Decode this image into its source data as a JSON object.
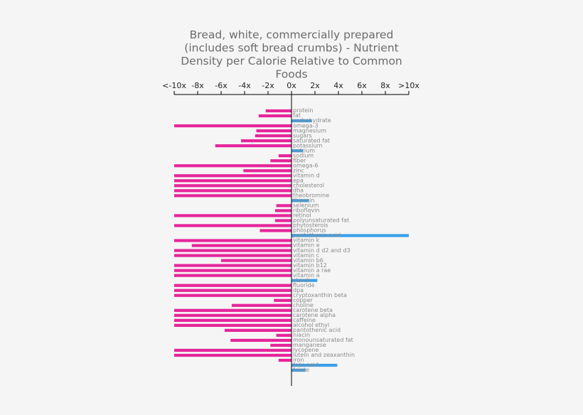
{
  "chart_data": {
    "type": "bar",
    "orientation": "horizontal",
    "title_lines": [
      "Bread, white, commercially prepared",
      "(includes soft bread crumbs) - Nutrient",
      "Density per Calorie Relative to Common",
      "Foods"
    ],
    "xlim": [
      -10,
      10
    ],
    "xticks": [
      {
        "value": -10,
        "label": "<-10x"
      },
      {
        "value": -8,
        "label": "-8x"
      },
      {
        "value": -6,
        "label": "-6x"
      },
      {
        "value": -4,
        "label": "-4x"
      },
      {
        "value": -2,
        "label": "-2x"
      },
      {
        "value": 0,
        "label": "0x"
      },
      {
        "value": 2,
        "label": "2x"
      },
      {
        "value": 4,
        "label": "4x"
      },
      {
        "value": 6,
        "label": "6x"
      },
      {
        "value": 8,
        "label": "8x"
      },
      {
        "value": 10,
        "label": ">10x"
      }
    ],
    "colors": {
      "negative": "#e6259b",
      "positive": "#3aa0ea",
      "axis": "#000000"
    },
    "categories": [
      "protein",
      "fat",
      "carbohydrate",
      "omega-3",
      "magnesium",
      "sugars",
      "saturated fat",
      "potassium",
      "calcium",
      "sodium",
      "fiber",
      "omega-6",
      "zinc",
      "vitamin d",
      "epa",
      "cholesterol",
      "dha",
      "theobromine",
      "thiamin",
      "selenium",
      "riboflavin",
      "retinol",
      "polyunsaturated fat",
      "phytosterols",
      "phosphorus",
      "pantothenic acid",
      "vitamin k",
      "vitamin e",
      "vitamin d d2 and d3",
      "vitamin c",
      "vitamin b6",
      "vitamin b12",
      "vitamin a rae",
      "vitamin a",
      "starch",
      "fluoride",
      "dpa",
      "cryptoxanthin beta",
      "copper",
      "choline",
      "carotene beta",
      "carotene alpha",
      "caffeine",
      "alcohol ethyl",
      "pantothenic acid",
      "niacin",
      "monounsaturated fat",
      "manganese",
      "lycopene",
      "lutein and zeaxanthin",
      "iron",
      "folic acid",
      "folate"
    ],
    "values": [
      -2.2,
      -2.8,
      1.7,
      -10,
      -3,
      -3.1,
      -4.3,
      -6.5,
      1,
      -1.1,
      -1.8,
      -10,
      -4.1,
      -10,
      -10,
      -10,
      -10,
      -10,
      1.5,
      -1.3,
      -1.4,
      -10,
      -1.4,
      -10,
      -2.7,
      10,
      -10,
      -8.5,
      -10,
      -10,
      -6,
      -10,
      -10,
      -10,
      2.2,
      -10,
      -10,
      -10,
      -1.5,
      -5.1,
      -10,
      -10,
      -10,
      -10,
      -5.7,
      -1.3,
      -5.2,
      -1.8,
      -10,
      -10,
      -1.1,
      3.9,
      1.2
    ],
    "xlabel": "",
    "ylabel": "",
    "grid": false,
    "legend": "none"
  }
}
